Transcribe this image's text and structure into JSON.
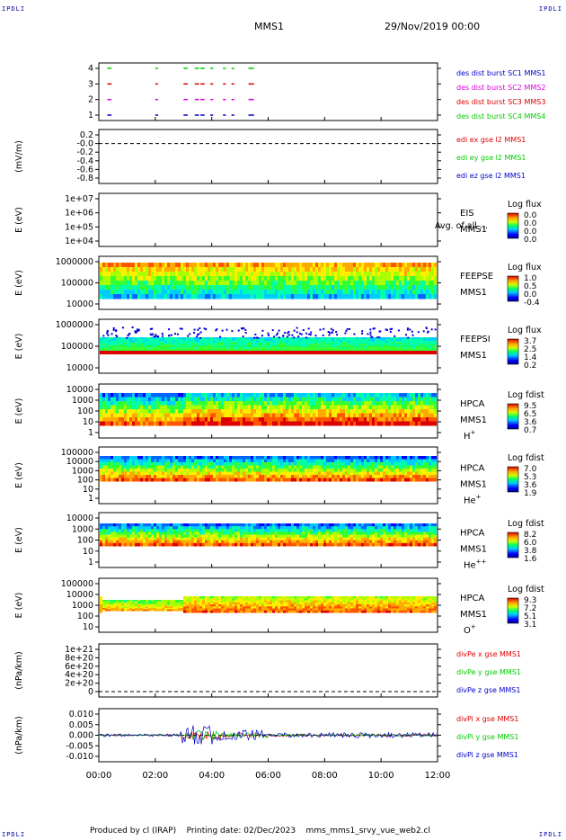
{
  "corners": {
    "tl": "IPDLI",
    "tr": "IPDLI",
    "bl": "IPDLI",
    "br": "IPDLI"
  },
  "header": {
    "mission": "MMS1",
    "date": "29/Nov/2019 00:00"
  },
  "footer": {
    "producer": "Produced by cl (IRAP)",
    "printing": "Printing date: 02/Dec/2023",
    "script": "mms_mms1_srvy_vue_web2.cl"
  },
  "colors": {
    "blue": "#0000cc",
    "red": "#dd0000",
    "green": "#00cc00",
    "magenta": "#dd00dd"
  },
  "chart_data": [
    {
      "type": "scatter",
      "x_range": [
        "00:00",
        "12:00"
      ],
      "ylabel": "",
      "yticks": [
        "4",
        "3",
        "2",
        "1"
      ],
      "legend": [
        {
          "label": "des dist burst SC1 MMS1",
          "color": "#0000cc"
        },
        {
          "label": "des dist burst SC2 MMS2",
          "color": "#dd00dd"
        },
        {
          "label": "des dist burst SC3 MMS3",
          "color": "#dd0000"
        },
        {
          "label": "des dist burst SC4 MMS4",
          "color": "#00cc00"
        }
      ],
      "burst_intervals_hours": [
        [
          0.3,
          0.45
        ],
        [
          2.0,
          2.1
        ],
        [
          3.0,
          3.15
        ],
        [
          3.4,
          3.55
        ],
        [
          3.6,
          3.75
        ],
        [
          3.95,
          4.05
        ],
        [
          4.4,
          4.5
        ],
        [
          4.7,
          4.8
        ],
        [
          5.3,
          5.5
        ]
      ]
    },
    {
      "type": "line",
      "ylabel": "(mV/m)",
      "yticks": [
        "0.2",
        "-0.0",
        "-0.2",
        "-0.4",
        "-0.6",
        "-0.8"
      ],
      "legend": [
        {
          "label": "edi ex gse l2 MMS1",
          "color": "#dd0000"
        },
        {
          "label": "edi ey gse l2 MMS1",
          "color": "#00cc00"
        },
        {
          "label": "edi ez gse l2 MMS1",
          "color": "#0000cc"
        }
      ],
      "reference_line": 0
    },
    {
      "type": "heatmap",
      "ylabel": "E (eV)",
      "yticks": [
        "1e+07",
        "1e+06",
        "1e+05",
        "1e+04"
      ],
      "instrument": [
        "EIS",
        "MMS1"
      ],
      "overlay": "Avg. of all ...",
      "colorbar": {
        "title": "Log flux",
        "ticks": [
          "0.0",
          "0.0",
          "0.0",
          "0.0"
        ]
      }
    },
    {
      "type": "heatmap",
      "ylabel": "E (eV)",
      "yticks": [
        "1000000",
        "100000",
        "10000"
      ],
      "instrument": [
        "FEEPSE",
        "MMS1"
      ],
      "colorbar": {
        "title": "Log flux",
        "ticks": [
          "1.0",
          "0.5",
          "0.0",
          "-0.4"
        ]
      }
    },
    {
      "type": "heatmap",
      "ylabel": "E (eV)",
      "yticks": [
        "1000000",
        "100000",
        "10000"
      ],
      "instrument": [
        "FEEPSI",
        "MMS1"
      ],
      "colorbar": {
        "title": "Log flux",
        "ticks": [
          "3.7",
          "2.5",
          "1.4",
          "0.2"
        ]
      }
    },
    {
      "type": "heatmap",
      "ylabel": "E (eV)",
      "yticks": [
        "10000",
        "1000",
        "100",
        "10",
        "1"
      ],
      "instrument": [
        "HPCA",
        "MMS1"
      ],
      "species": "H",
      "charge": "+",
      "colorbar": {
        "title": "Log fdist",
        "ticks": [
          "9.5",
          "6.5",
          "3.6",
          "0.7"
        ]
      }
    },
    {
      "type": "heatmap",
      "ylabel": "E (eV)",
      "yticks": [
        "100000",
        "10000",
        "1000",
        "100",
        "10",
        "1"
      ],
      "instrument": [
        "HPCA",
        "MMS1"
      ],
      "species": "He",
      "charge": "+",
      "colorbar": {
        "title": "Log fdist",
        "ticks": [
          "7.0",
          "5.3",
          "3.6",
          "1.9"
        ]
      }
    },
    {
      "type": "heatmap",
      "ylabel": "E (eV)",
      "yticks": [
        "10000",
        "1000",
        "100",
        "10",
        "1"
      ],
      "instrument": [
        "HPCA",
        "MMS1"
      ],
      "species": "He",
      "charge": "++",
      "colorbar": {
        "title": "Log fdist",
        "ticks": [
          "8.2",
          "6.0",
          "3.8",
          "1.6"
        ]
      }
    },
    {
      "type": "heatmap",
      "ylabel": "E (eV)",
      "yticks": [
        "100000",
        "10000",
        "1000",
        "100",
        "10"
      ],
      "instrument": [
        "HPCA",
        "MMS1"
      ],
      "species": "O",
      "charge": "+",
      "colorbar": {
        "title": "Log fdist",
        "ticks": [
          "9.3",
          "7.2",
          "5.1",
          "3.1"
        ]
      }
    },
    {
      "type": "line",
      "ylabel": "(nPa/km)",
      "yticks": [
        "1e+21",
        "8e+20",
        "6e+20",
        "4e+20",
        "2e+20",
        "0"
      ],
      "legend": [
        {
          "label": "divPe x gse MMS1",
          "color": "#dd0000"
        },
        {
          "label": "divPe y gse MMS1",
          "color": "#00cc00"
        },
        {
          "label": "divPe z gse MMS1",
          "color": "#0000cc"
        }
      ],
      "reference_line": 0
    },
    {
      "type": "line",
      "ylabel": "(nPa/km)",
      "yticks": [
        "0.010",
        "0.005",
        "0.000",
        "-0.005",
        "-0.010"
      ],
      "legend": [
        {
          "label": "divPi x gse MMS1",
          "color": "#dd0000"
        },
        {
          "label": "divPi y gse MMS1",
          "color": "#00cc00"
        },
        {
          "label": "divPi z gse MMS1",
          "color": "#0000cc"
        }
      ],
      "reference_line": 0,
      "xticks": [
        "00:00",
        "02:00",
        "04:00",
        "06:00",
        "08:00",
        "10:00",
        "12:00"
      ]
    }
  ]
}
